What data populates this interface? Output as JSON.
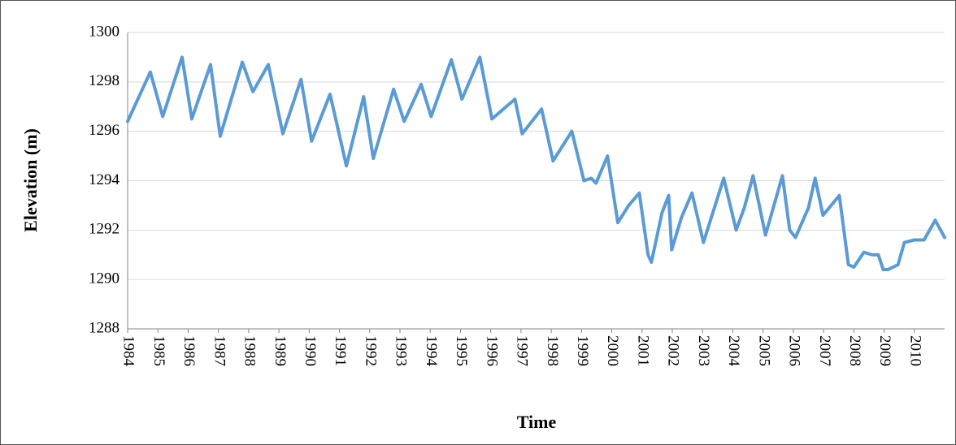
{
  "chart_data": {
    "type": "line",
    "x_label": "Time",
    "y_label": "Elevation (m)",
    "x": [
      1984.0,
      1984.75,
      1985.16,
      1985.8,
      1986.12,
      1986.74,
      1987.06,
      1987.79,
      1988.14,
      1988.65,
      1989.13,
      1989.73,
      1990.08,
      1990.69,
      1991.23,
      1991.8,
      1992.12,
      1992.79,
      1993.14,
      1993.7,
      1994.03,
      1994.7,
      1995.05,
      1995.64,
      1996.04,
      1996.8,
      1997.04,
      1997.68,
      1998.06,
      1998.68,
      1999.08,
      1999.32,
      1999.48,
      1999.86,
      2000.2,
      2000.56,
      2000.91,
      2001.2,
      2001.31,
      2001.66,
      2001.88,
      2001.98,
      2002.3,
      2002.65,
      2003.03,
      2003.7,
      2004.11,
      2004.38,
      2004.67,
      2005.08,
      2005.64,
      2005.88,
      2006.07,
      2006.5,
      2006.72,
      2006.98,
      2007.52,
      2007.82,
      2008.0,
      2008.33,
      2008.6,
      2008.81,
      2008.97,
      2009.13,
      2009.46,
      2009.67,
      2010.0,
      2010.32,
      2010.69,
      2011.0
    ],
    "values": [
      1296.4,
      1298.4,
      1296.6,
      1299.0,
      1296.5,
      1298.7,
      1295.8,
      1298.8,
      1297.6,
      1298.7,
      1295.9,
      1298.1,
      1295.6,
      1297.5,
      1294.6,
      1297.4,
      1294.9,
      1297.7,
      1296.4,
      1297.9,
      1296.6,
      1298.9,
      1297.3,
      1299.0,
      1296.5,
      1297.3,
      1295.9,
      1296.9,
      1294.8,
      1296.0,
      1294.0,
      1294.1,
      1293.9,
      1295.0,
      1292.3,
      1293.0,
      1293.5,
      1291.0,
      1290.7,
      1292.7,
      1293.4,
      1291.2,
      1292.5,
      1293.5,
      1291.5,
      1294.1,
      1292.0,
      1292.9,
      1294.2,
      1291.8,
      1294.2,
      1292.0,
      1291.7,
      1292.9,
      1294.1,
      1292.6,
      1293.4,
      1290.6,
      1290.5,
      1291.1,
      1291.0,
      1291.0,
      1290.4,
      1290.4,
      1290.6,
      1291.5,
      1291.6,
      1291.6,
      1292.4,
      1291.7
    ],
    "color": "#5b9bd5",
    "xlim": [
      1984,
      2011
    ],
    "xticks": [
      1984,
      1985,
      1986,
      1987,
      1988,
      1989,
      1990,
      1991,
      1992,
      1993,
      1994,
      1995,
      1996,
      1997,
      1998,
      1999,
      2000,
      2001,
      2002,
      2003,
      2004,
      2005,
      2006,
      2007,
      2008,
      2009,
      2010
    ],
    "ylim": [
      1288,
      1300
    ],
    "yticks": [
      1288,
      1290,
      1292,
      1294,
      1296,
      1298,
      1300
    ],
    "grid": true
  }
}
